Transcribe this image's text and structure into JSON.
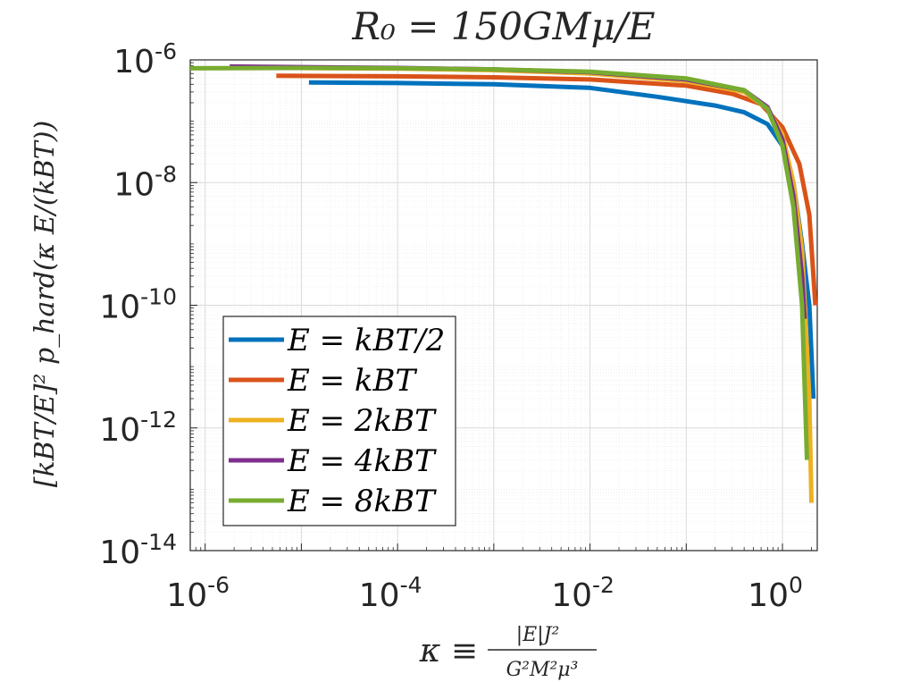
{
  "chart_data": {
    "type": "line",
    "title": "R₀ = 150GMμ/E",
    "xlabel": "κ ≡ |E|J²/(G²M²μ³)",
    "xlabel_parts": {
      "lhs": "κ ≡",
      "numerator": "|E|J²",
      "denominator": "G²M²μ³"
    },
    "ylabel": "[kBT/E]² p_hard(κ E/(kBT))",
    "xscale": "log",
    "yscale": "log",
    "xlim": [
      7e-07,
      2.3
    ],
    "ylim": [
      1e-14,
      1e-06
    ],
    "grid": true,
    "minor_grid": true,
    "legend_location": "bottom-left",
    "x_ticks": [
      {
        "value": 1e-06,
        "base": "10",
        "exp": "-6"
      },
      {
        "value": 0.0001,
        "base": "10",
        "exp": "-4"
      },
      {
        "value": 0.01,
        "base": "10",
        "exp": "-2"
      },
      {
        "value": 1,
        "base": "10",
        "exp": "0"
      }
    ],
    "y_ticks": [
      {
        "value": 1e-06,
        "base": "10",
        "exp": "-6"
      },
      {
        "value": 1e-08,
        "base": "10",
        "exp": "-8"
      },
      {
        "value": 1e-10,
        "base": "10",
        "exp": "-10"
      },
      {
        "value": 1e-12,
        "base": "10",
        "exp": "-12"
      },
      {
        "value": 1e-14,
        "base": "10",
        "exp": "-14"
      }
    ],
    "series": [
      {
        "name": "E = kBT/2",
        "color": "#0072BD",
        "points": [
          [
            1.2e-05,
            4.3e-07
          ],
          [
            0.0001,
            4.2e-07
          ],
          [
            0.001,
            4e-07
          ],
          [
            0.01,
            3.5e-07
          ],
          [
            0.05,
            2.5e-07
          ],
          [
            0.2,
            1.8e-07
          ],
          [
            0.4,
            1.4e-07
          ],
          [
            0.7,
            9e-08
          ],
          [
            1.0,
            4e-08
          ],
          [
            1.3,
            1e-08
          ],
          [
            1.6,
            1e-09
          ],
          [
            1.9,
            1e-10
          ],
          [
            2.1,
            3e-12
          ]
        ]
      },
      {
        "name": "E = kBT",
        "color": "#D95319",
        "points": [
          [
            5.5e-06,
            5.5e-07
          ],
          [
            0.0001,
            5.4e-07
          ],
          [
            0.001,
            5.2e-07
          ],
          [
            0.01,
            4.8e-07
          ],
          [
            0.1,
            3.8e-07
          ],
          [
            0.3,
            2.8e-07
          ],
          [
            0.6,
            1.9e-07
          ],
          [
            1.0,
            8e-08
          ],
          [
            1.5,
            2e-08
          ],
          [
            1.9,
            3e-09
          ],
          [
            2.1,
            3e-10
          ],
          [
            2.2,
            1e-10
          ]
        ]
      },
      {
        "name": "E = 2kBT",
        "color": "#EDB120",
        "points": [
          [
            1.8e-06,
            7.5e-07
          ],
          [
            0.0001,
            7.2e-07
          ],
          [
            0.001,
            6.8e-07
          ],
          [
            0.01,
            6e-07
          ],
          [
            0.1,
            4.5e-07
          ],
          [
            0.4,
            3e-07
          ],
          [
            0.7,
            1.6e-07
          ],
          [
            1.0,
            6e-08
          ],
          [
            1.3,
            1e-08
          ],
          [
            1.6,
            8e-10
          ],
          [
            1.9,
            3e-12
          ],
          [
            2.0,
            6e-14
          ]
        ]
      },
      {
        "name": "E = 4kBT",
        "color": "#7E2F8E",
        "points": [
          [
            1.8e-06,
            7.8e-07
          ],
          [
            0.0001,
            7.4e-07
          ],
          [
            0.001,
            7e-07
          ],
          [
            0.01,
            6.3e-07
          ],
          [
            0.1,
            4.8e-07
          ],
          [
            0.4,
            3.2e-07
          ],
          [
            0.7,
            1.7e-07
          ],
          [
            1.0,
            5e-08
          ],
          [
            1.3,
            6e-09
          ],
          [
            1.6,
            3e-10
          ],
          [
            1.7,
            6e-11
          ]
        ]
      },
      {
        "name": "E = 8kBT",
        "color": "#77AC30",
        "points": [
          [
            7e-07,
            7.3e-07
          ],
          [
            1e-05,
            7.4e-07
          ],
          [
            0.0001,
            7.3e-07
          ],
          [
            0.001,
            7e-07
          ],
          [
            0.01,
            6.4e-07
          ],
          [
            0.1,
            5e-07
          ],
          [
            0.4,
            3.2e-07
          ],
          [
            0.7,
            1.6e-07
          ],
          [
            1.0,
            4e-08
          ],
          [
            1.3,
            4e-09
          ],
          [
            1.6,
            1e-10
          ],
          [
            1.8,
            3e-13
          ]
        ]
      }
    ]
  }
}
